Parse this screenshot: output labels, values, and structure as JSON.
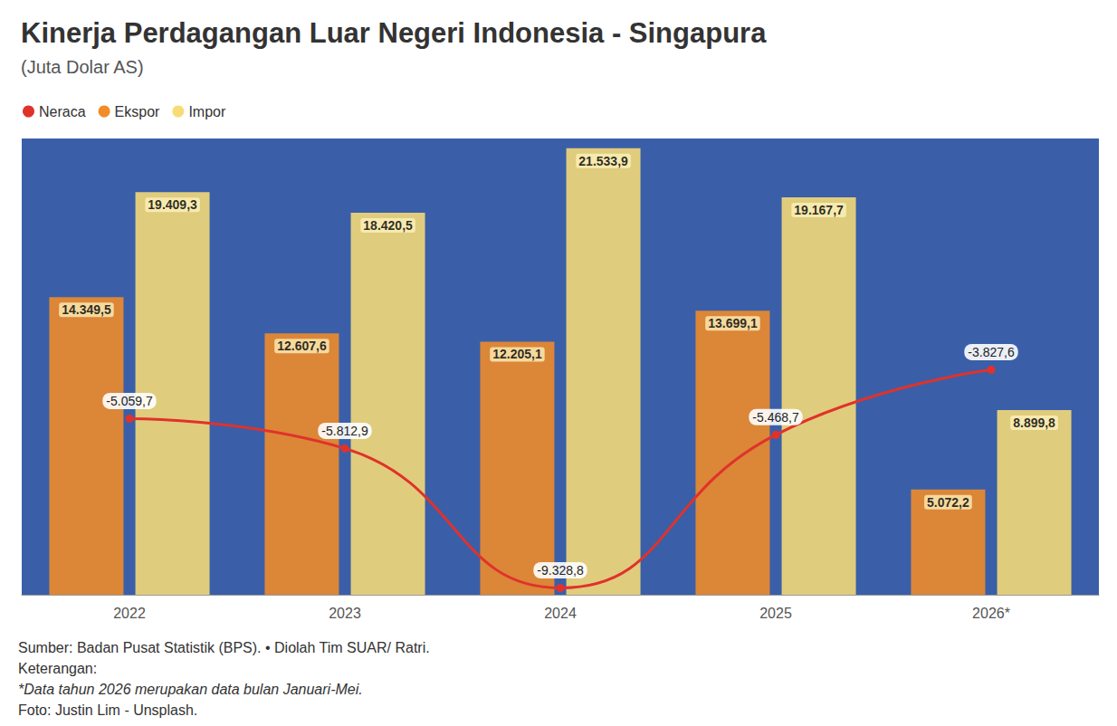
{
  "chart_data": {
    "type": "bar",
    "title": "Kinerja Perdagangan Luar Negeri Indonesia - Singapura",
    "subtitle": "(Juta Dolar AS)",
    "categories": [
      "2022",
      "2023",
      "2024",
      "2025",
      "2026*"
    ],
    "series": [
      {
        "name": "Neraca",
        "type": "line",
        "axis": "y2",
        "color": "#e0322b",
        "marker": "circle",
        "line_style": "solid",
        "values": [
          -5059.7,
          -5812.9,
          -9328.8,
          -5468.7,
          -3827.6
        ],
        "value_labels": [
          "-5.059,7",
          "-5.812,9",
          "-9.328,8",
          "-5.468,7",
          "-3.827,6"
        ]
      },
      {
        "name": "Ekspor",
        "type": "bar",
        "color": "#f28c28",
        "values": [
          14349.5,
          12607.6,
          12205.1,
          13699.1,
          5072.2
        ],
        "value_labels": [
          "14.349,5",
          "12.607,6",
          "12.205,1",
          "13.699,1",
          "5.072,2"
        ]
      },
      {
        "name": "Impor",
        "type": "bar",
        "color": "#f7dc76",
        "values": [
          19409.3,
          18420.5,
          21533.9,
          19167.7,
          8899.8
        ],
        "value_labels": [
          "19.409,3",
          "18.420,5",
          "21.533,9",
          "19.167,7",
          "8.899,8"
        ]
      }
    ],
    "ylim": [
      0,
      22000
    ],
    "y2lim": [
      -9500,
      2000
    ],
    "grid": false,
    "legend": "top-left",
    "data_labels": true,
    "tick_labels": "x",
    "caption": [
      "Sumber: Badan Pusat Statistik (BPS). • Diolah Tim SUAR/ Ratri.",
      "Keterangan:",
      "*Data tahun 2026 merupakan data bulan Januari-Mei.",
      "Foto: Justin Lim - Unsplash."
    ]
  }
}
